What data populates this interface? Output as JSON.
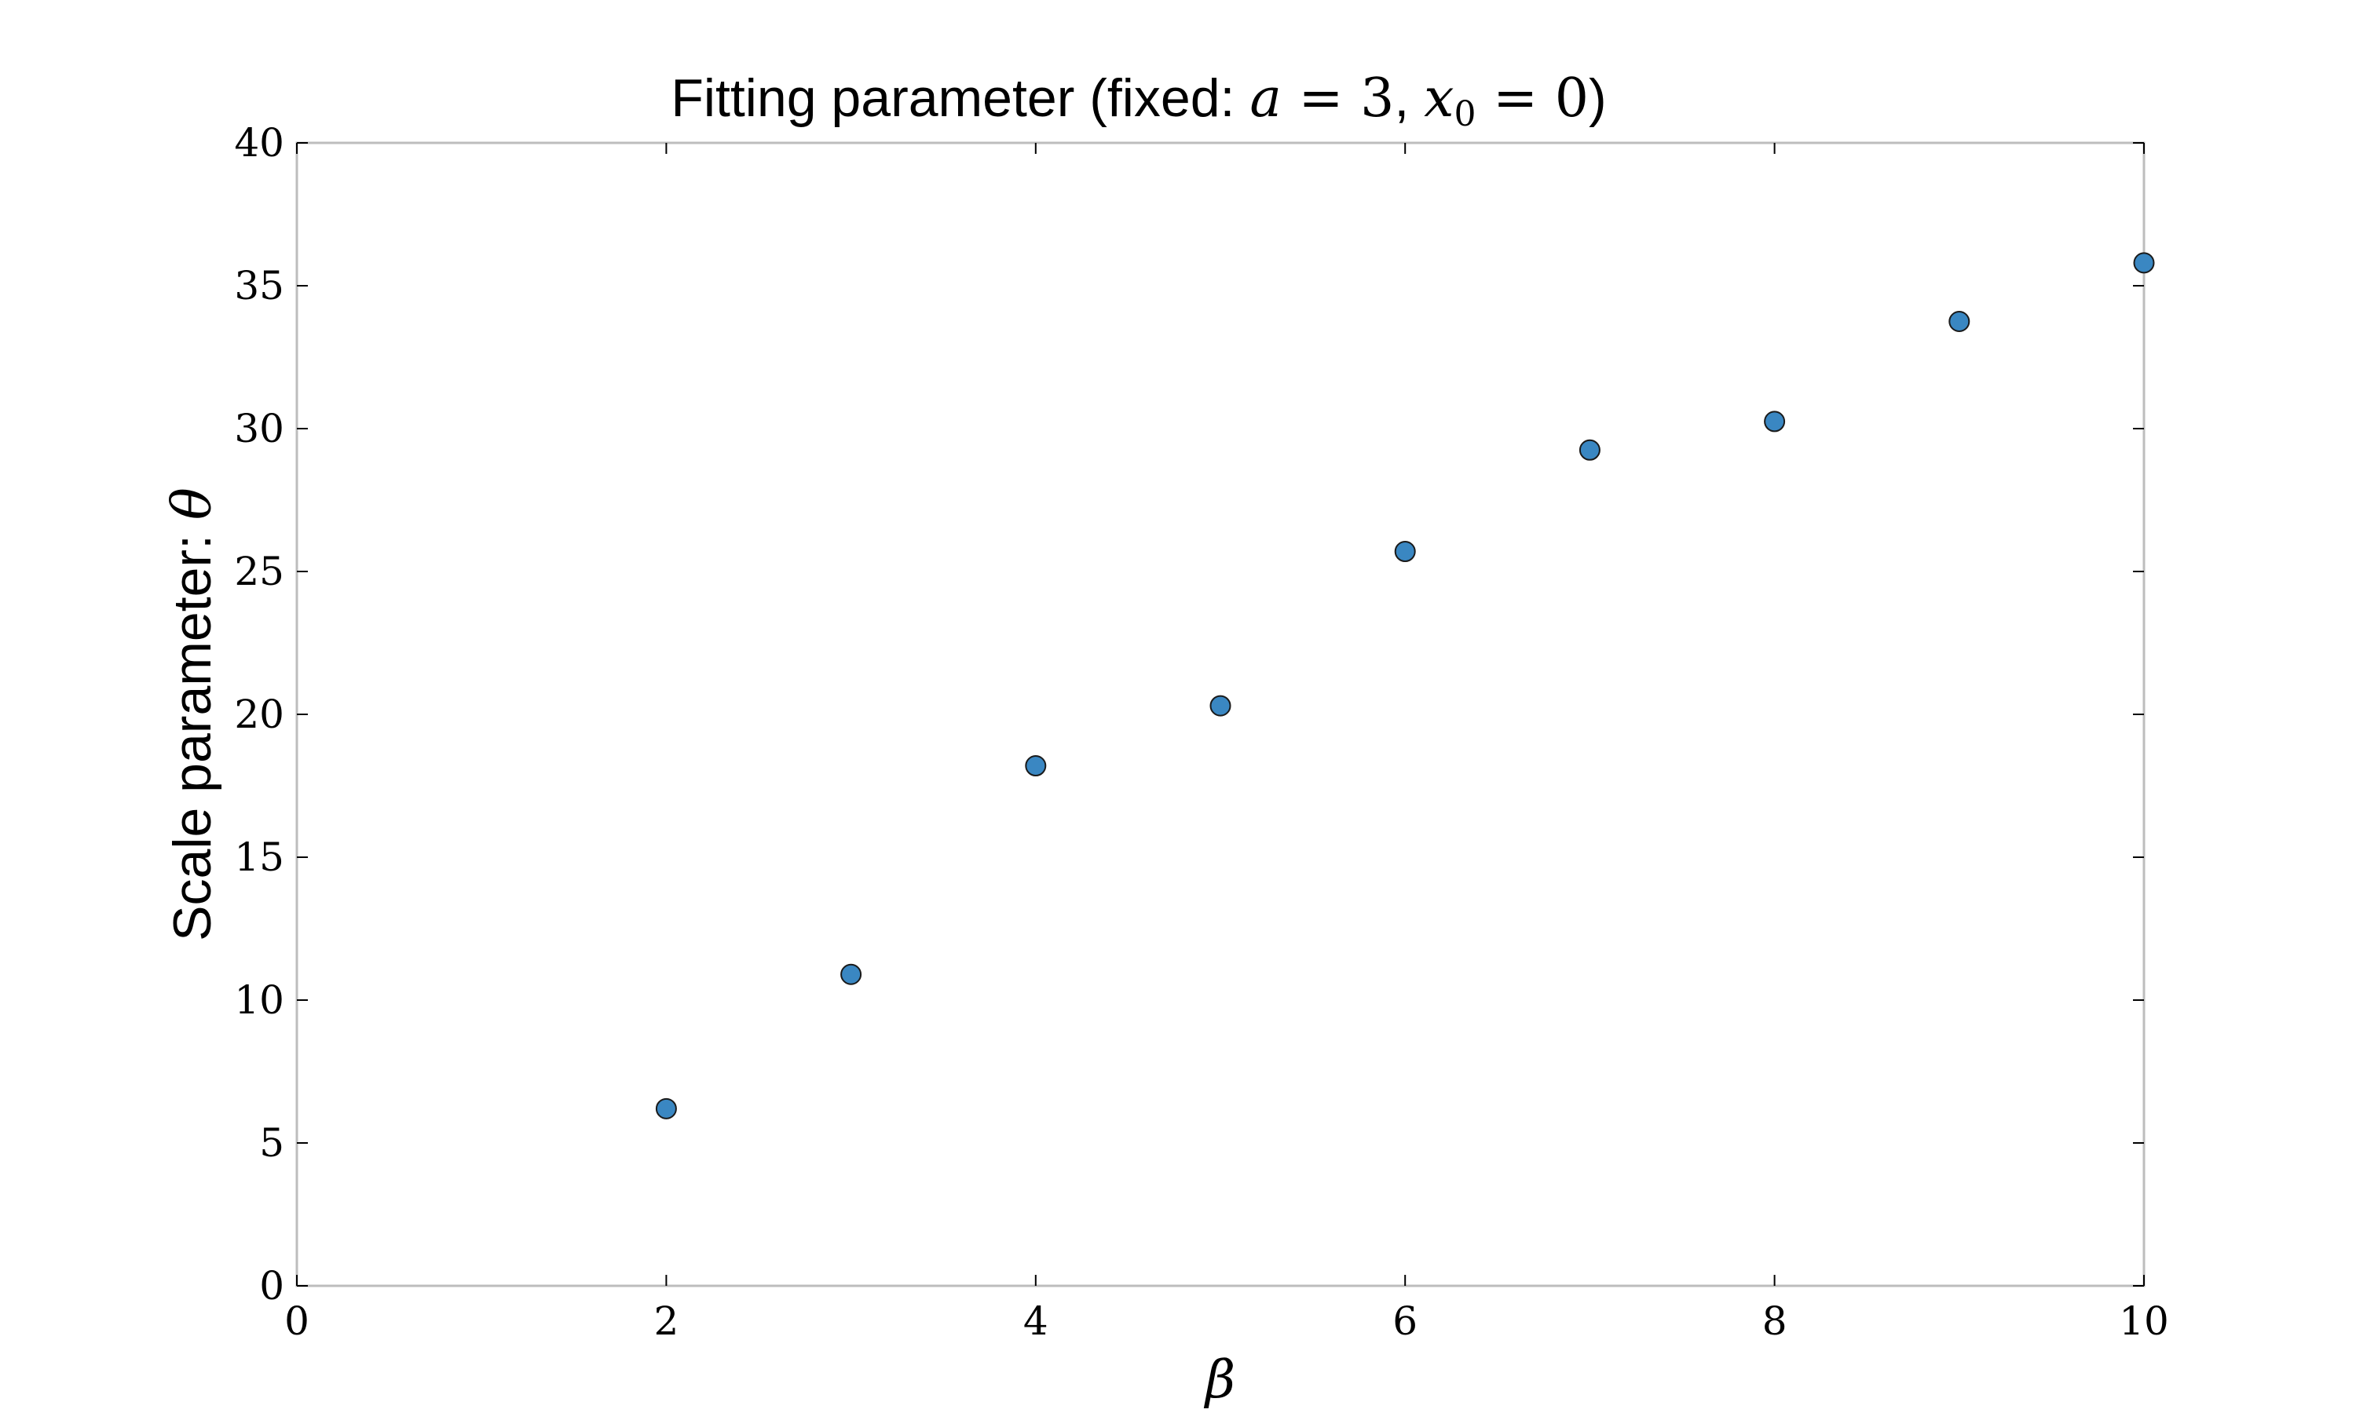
{
  "chart_data": {
    "type": "scatter",
    "title": "Fitting parameter (fixed: a = 3, x0 = 0)",
    "title_parts": {
      "prefix": "Fitting parameter (fixed: ",
      "param_a_name": "a",
      "param_a_value": "3",
      "separator": ", ",
      "param_x_name": "x",
      "param_x_subscript": "0",
      "param_x_value": "0",
      "suffix": ")"
    },
    "xlabel": "β",
    "ylabel_text": "Scale parameter: ",
    "ylabel_symbol": "θ",
    "xlim": [
      0,
      10
    ],
    "ylim": [
      0,
      40
    ],
    "xticks": [
      0,
      2,
      4,
      6,
      8,
      10
    ],
    "yticks": [
      0,
      5,
      10,
      15,
      20,
      25,
      30,
      35,
      40
    ],
    "grid": false,
    "legend": "none",
    "marker_color": "#3a87c2",
    "marker_edge_color": "#1a1a1a",
    "series": [
      {
        "x": [
          2,
          3,
          4,
          5,
          6,
          7,
          8,
          9,
          10
        ],
        "y": [
          6.2,
          10.9,
          18.2,
          20.3,
          25.7,
          29.25,
          30.25,
          33.75,
          35.8
        ]
      }
    ]
  }
}
